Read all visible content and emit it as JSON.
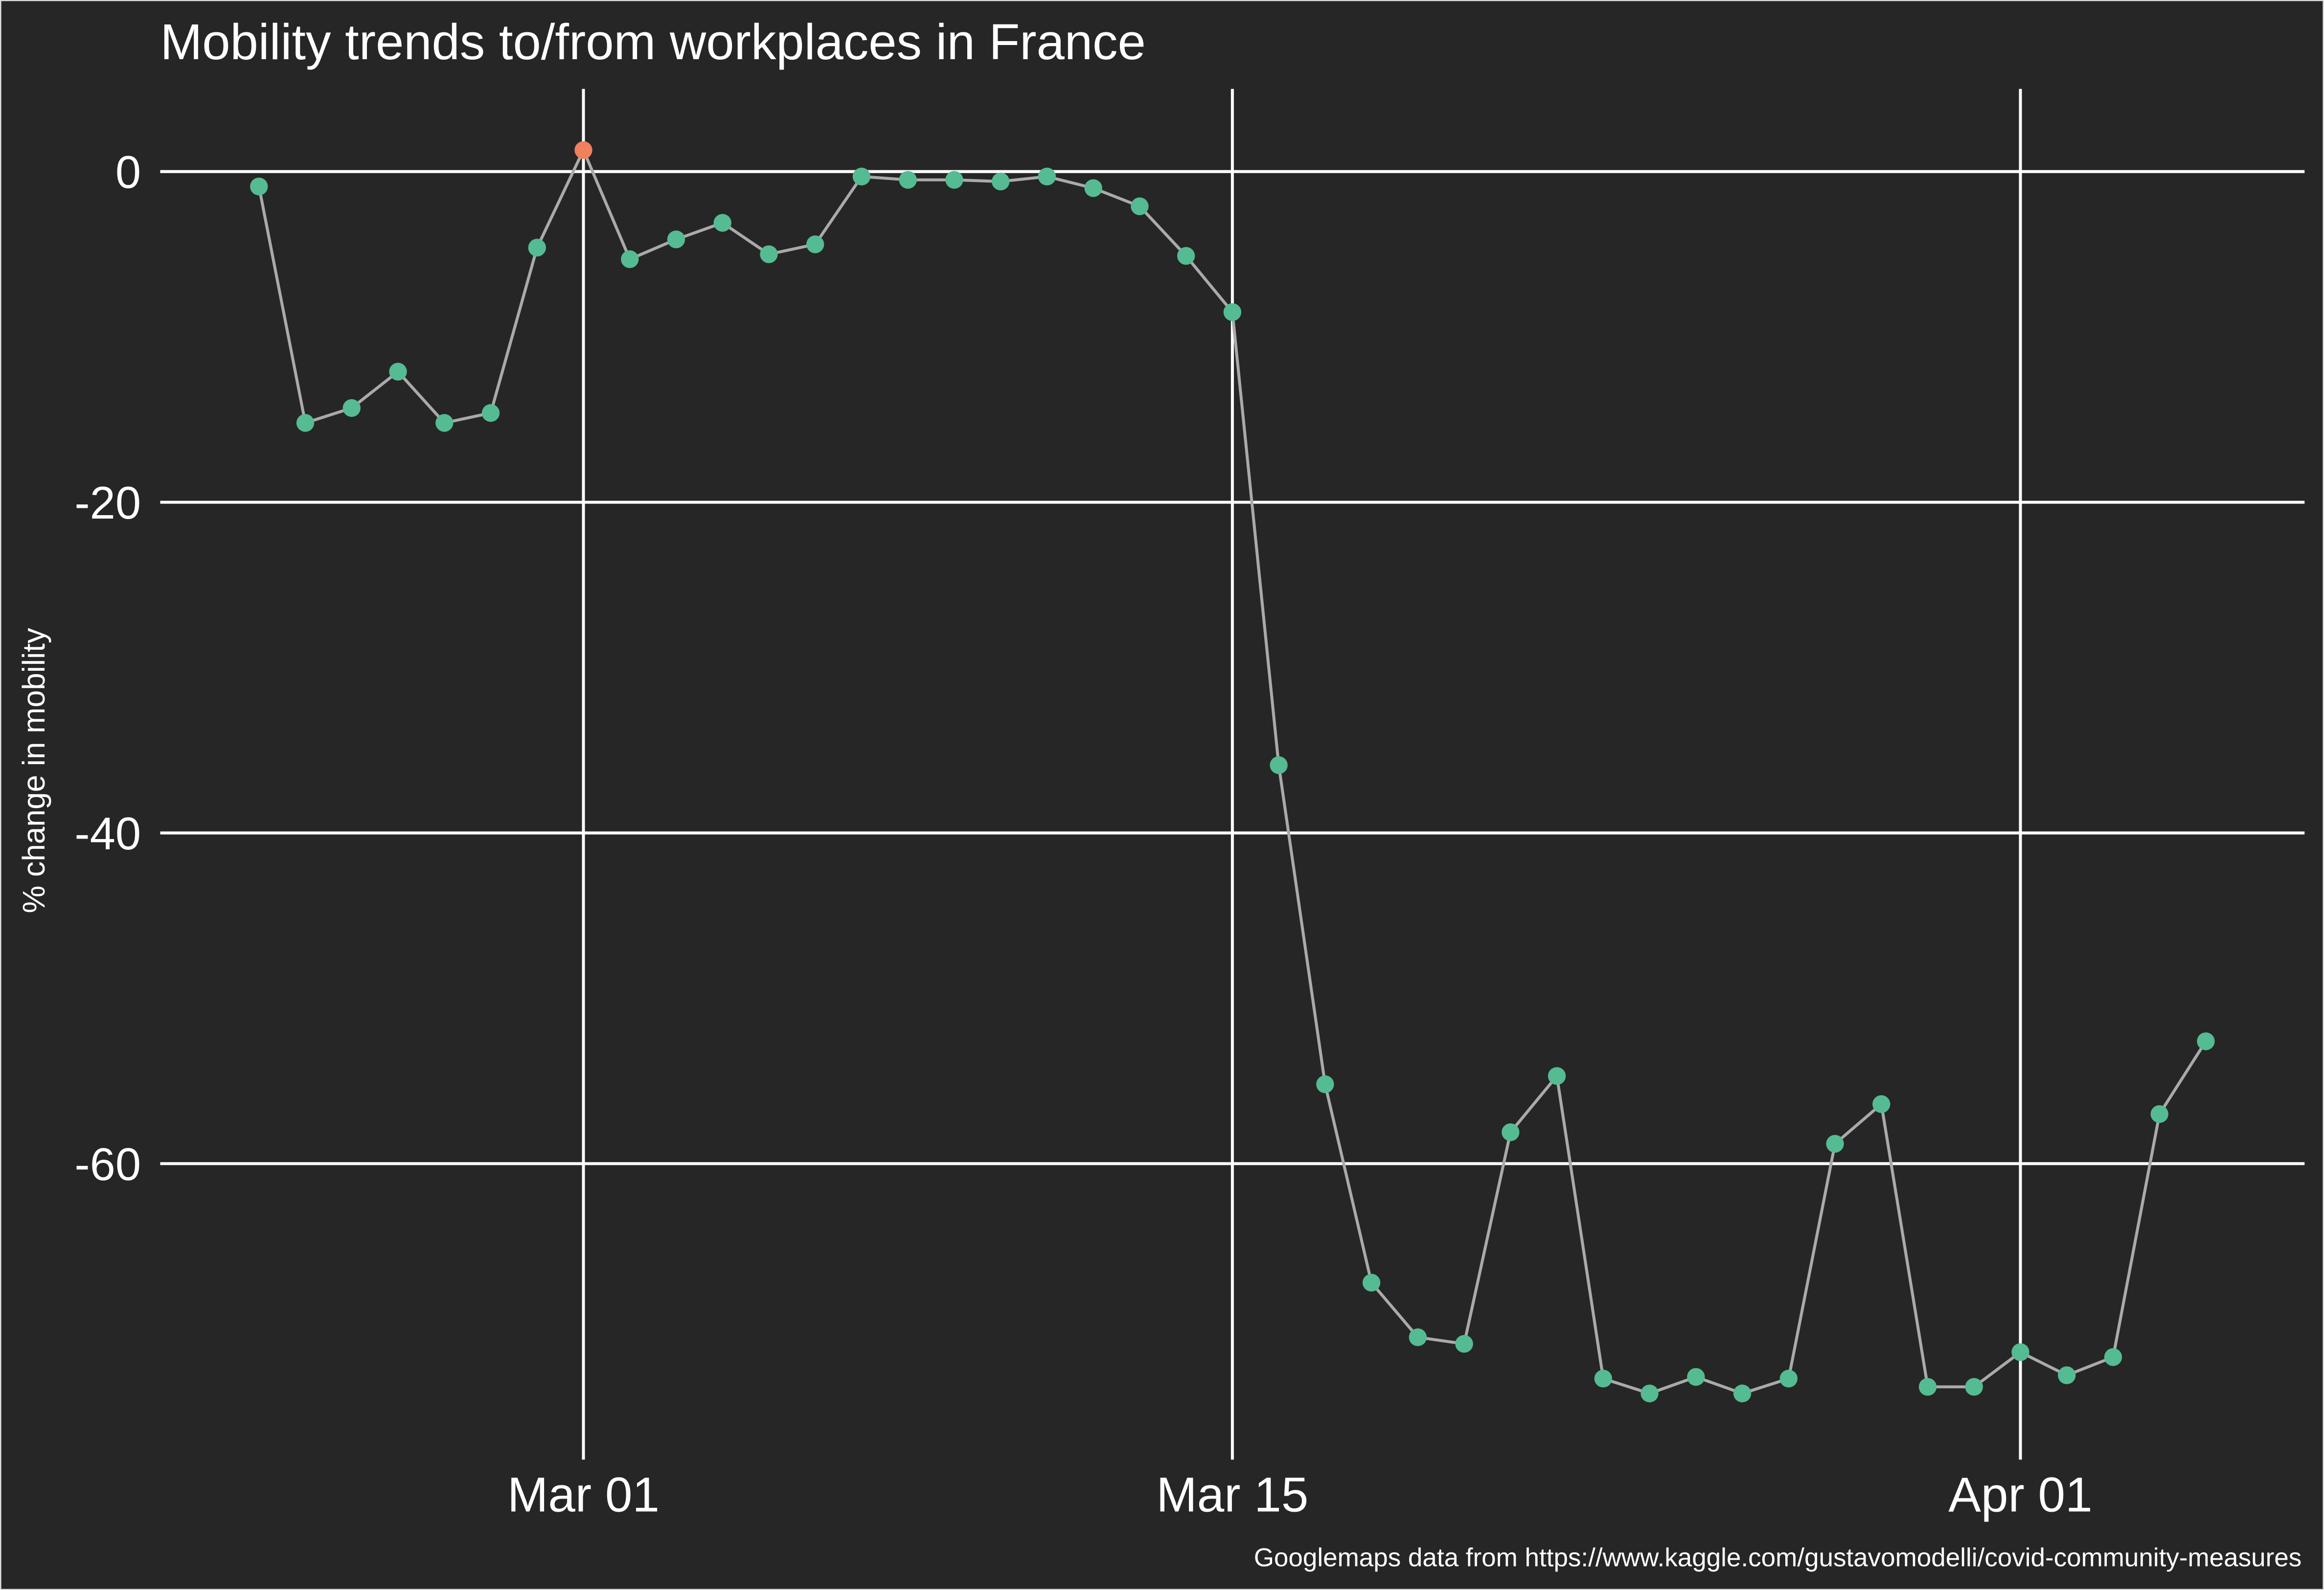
{
  "chart_data": {
    "type": "line",
    "title": "Mobility trends to/from workplaces in France",
    "y_label": "% change in mobility",
    "caption": "Googlemaps data from https://www.kaggle.com/gustavomodelli/covid-community-measures",
    "x": [
      "Feb 23",
      "Feb 24",
      "Feb 25",
      "Feb 26",
      "Feb 27",
      "Feb 28",
      "Feb 29",
      "Mar 01",
      "Mar 02",
      "Mar 03",
      "Mar 04",
      "Mar 05",
      "Mar 06",
      "Mar 07",
      "Mar 08",
      "Mar 09",
      "Mar 10",
      "Mar 11",
      "Mar 12",
      "Mar 13",
      "Mar 14",
      "Mar 15",
      "Mar 16",
      "Mar 17",
      "Mar 18",
      "Mar 19",
      "Mar 20",
      "Mar 21",
      "Mar 22",
      "Mar 23",
      "Mar 24",
      "Mar 25",
      "Mar 26",
      "Mar 27",
      "Mar 28",
      "Mar 29",
      "Mar 30",
      "Mar 31",
      "Apr 01",
      "Apr 02",
      "Apr 03",
      "Apr 04",
      "Apr 05"
    ],
    "values": [
      -0.9,
      -15.2,
      -14.3,
      -12.1,
      -15.2,
      -14.6,
      -4.6,
      1.3,
      -5.3,
      -4.1,
      -3.1,
      -5.0,
      -4.4,
      -0.3,
      -0.5,
      -0.5,
      -0.6,
      -0.3,
      -1.0,
      -2.1,
      -5.1,
      -8.5,
      -35.9,
      -55.2,
      -67.2,
      -70.5,
      -70.9,
      -58.1,
      -54.7,
      -73.0,
      -73.9,
      -72.9,
      -73.9,
      -73.0,
      -58.8,
      -56.4,
      -73.5,
      -73.5,
      -71.4,
      -72.8,
      -71.7,
      -57.0,
      -52.6
    ],
    "color": "#55bb92",
    "line_color": "#aaaaaa",
    "highlight_color": "#f0805e",
    "xticks": [
      "Mar 01",
      "Mar 15",
      "Apr 01"
    ],
    "ylim": [
      -77.9,
      5
    ],
    "yticks": [
      0,
      -20,
      -40,
      -60
    ],
    "grid": true
  }
}
